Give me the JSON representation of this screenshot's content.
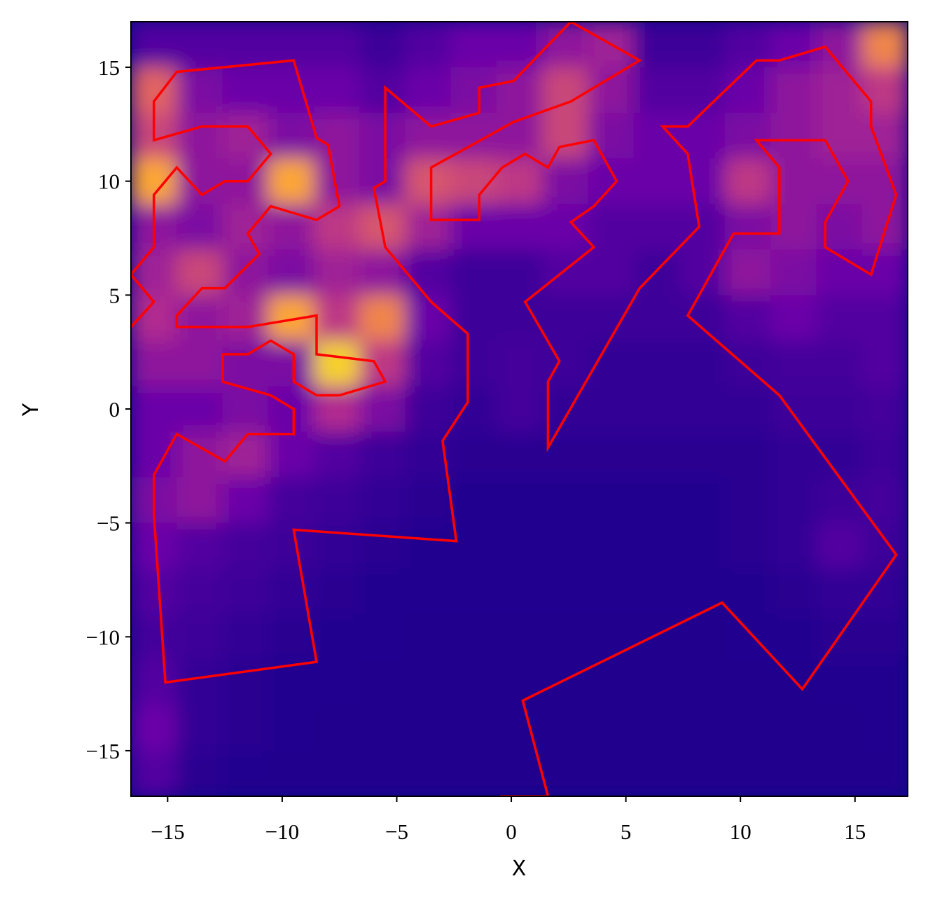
{
  "chart_data": {
    "type": "heatmap",
    "xlabel": "X",
    "ylabel": "Y",
    "xlim": [
      -16.6,
      17.3
    ],
    "ylim": [
      -17,
      17
    ],
    "xticks": [
      {
        "value": -15,
        "label": "−15"
      },
      {
        "value": -10,
        "label": "−10"
      },
      {
        "value": -5,
        "label": "−5"
      },
      0,
      5,
      10,
      15
    ],
    "yticks": [
      {
        "value": -15,
        "label": "−15"
      },
      {
        "value": -10,
        "label": "−10"
      },
      {
        "value": -5,
        "label": "−5"
      },
      0,
      5,
      10,
      15
    ],
    "colormap": [
      "#0d0887",
      "#6a00a8",
      "#b12a90",
      "#e16462",
      "#fca636",
      "#f0f921"
    ],
    "z": [
      [
        0.15,
        0.15,
        0.15,
        0.15,
        0.15,
        0.1,
        0.15,
        0.2,
        0.2,
        0.3,
        0.35,
        0.1,
        0.1,
        0.15,
        0.2,
        0.3,
        0.7
      ],
      [
        0.6,
        0.25,
        0.2,
        0.2,
        0.2,
        0.15,
        0.2,
        0.25,
        0.3,
        0.5,
        0.3,
        0.15,
        0.15,
        0.2,
        0.3,
        0.35,
        0.45
      ],
      [
        0.5,
        0.3,
        0.35,
        0.25,
        0.3,
        0.25,
        0.3,
        0.3,
        0.3,
        0.5,
        0.25,
        0.2,
        0.2,
        0.25,
        0.3,
        0.35,
        0.35
      ],
      [
        0.8,
        0.3,
        0.3,
        0.8,
        0.3,
        0.25,
        0.55,
        0.5,
        0.45,
        0.25,
        0.2,
        0.2,
        0.2,
        0.45,
        0.3,
        0.3,
        0.3
      ],
      [
        0.3,
        0.25,
        0.35,
        0.3,
        0.45,
        0.55,
        0.35,
        0.2,
        0.2,
        0.2,
        0.15,
        0.15,
        0.15,
        0.25,
        0.3,
        0.25,
        0.3
      ],
      [
        0.35,
        0.5,
        0.3,
        0.25,
        0.35,
        0.3,
        0.15,
        0.1,
        0.1,
        0.15,
        0.15,
        0.1,
        0.15,
        0.3,
        0.25,
        0.2,
        0.2
      ],
      [
        0.4,
        0.3,
        0.35,
        0.8,
        0.45,
        0.7,
        0.2,
        0.1,
        0.1,
        0.1,
        0.1,
        0.1,
        0.1,
        0.15,
        0.2,
        0.15,
        0.15
      ],
      [
        0.3,
        0.3,
        0.25,
        0.25,
        0.9,
        0.45,
        0.15,
        0.1,
        0.12,
        0.1,
        0.08,
        0.08,
        0.08,
        0.1,
        0.12,
        0.12,
        0.15
      ],
      [
        0.2,
        0.2,
        0.25,
        0.2,
        0.4,
        0.25,
        0.1,
        0.08,
        0.12,
        0.08,
        0.08,
        0.08,
        0.08,
        0.08,
        0.1,
        0.1,
        0.12
      ],
      [
        0.2,
        0.3,
        0.35,
        0.2,
        0.15,
        0.1,
        0.08,
        0.06,
        0.06,
        0.06,
        0.06,
        0.06,
        0.06,
        0.06,
        0.08,
        0.08,
        0.1
      ],
      [
        0.25,
        0.3,
        0.2,
        0.12,
        0.1,
        0.08,
        0.06,
        0.05,
        0.05,
        0.05,
        0.05,
        0.05,
        0.05,
        0.06,
        0.08,
        0.1,
        0.12
      ],
      [
        0.2,
        0.15,
        0.12,
        0.1,
        0.08,
        0.06,
        0.05,
        0.05,
        0.05,
        0.05,
        0.05,
        0.05,
        0.05,
        0.06,
        0.08,
        0.15,
        0.1
      ],
      [
        0.15,
        0.12,
        0.1,
        0.08,
        0.06,
        0.05,
        0.05,
        0.05,
        0.05,
        0.05,
        0.05,
        0.05,
        0.05,
        0.05,
        0.06,
        0.08,
        0.08
      ],
      [
        0.12,
        0.1,
        0.08,
        0.06,
        0.05,
        0.05,
        0.04,
        0.04,
        0.04,
        0.04,
        0.04,
        0.04,
        0.04,
        0.05,
        0.05,
        0.06,
        0.06
      ],
      [
        0.15,
        0.08,
        0.06,
        0.05,
        0.05,
        0.04,
        0.04,
        0.04,
        0.04,
        0.04,
        0.04,
        0.04,
        0.04,
        0.04,
        0.04,
        0.05,
        0.05
      ],
      [
        0.2,
        0.08,
        0.06,
        0.05,
        0.04,
        0.04,
        0.04,
        0.04,
        0.04,
        0.04,
        0.04,
        0.04,
        0.04,
        0.04,
        0.04,
        0.04,
        0.05
      ],
      [
        0.15,
        0.06,
        0.05,
        0.04,
        0.04,
        0.04,
        0.04,
        0.04,
        0.04,
        0.04,
        0.04,
        0.04,
        0.04,
        0.04,
        0.04,
        0.04,
        0.04
      ]
    ],
    "line": {
      "color": "#ff0000",
      "x": [
        -0.5,
        1.6,
        0.5,
        9.2,
        12.7,
        16.8,
        11.7,
        7.7,
        9.7,
        11.7,
        11.7,
        10.7,
        13.7,
        14.7,
        13.7,
        13.7,
        15.7,
        16.8,
        15.7,
        15.7,
        13.7,
        11.7,
        10.7,
        7.7,
        6.6,
        7.7,
        8.2,
        5.6,
        1.6,
        1.6,
        2.1,
        0.6,
        3.6,
        2.6,
        3.6,
        4.6,
        3.6,
        2.1,
        1.6,
        0.6,
        -0.4,
        -1.4,
        -1.4,
        -3.5,
        -3.5,
        0.1,
        2.6,
        5.6,
        2.6,
        0.1,
        -1.4,
        -1.4,
        -3.5,
        -5.5,
        -5.5,
        -6.0,
        -5.5,
        -3.5,
        -1.9,
        -1.9,
        -3.0,
        -2.4,
        -9.5,
        -8.5,
        -15.1,
        -15.6,
        -15.6,
        -14.6,
        -12.5,
        -11.5,
        -9.5,
        -9.5,
        -10.5,
        -12.6,
        -12.6,
        -11.5,
        -10.5,
        -9.5,
        -9.5,
        -8.5,
        -7.5,
        -5.5,
        -6.0,
        -8.5,
        -8.5,
        -11.5,
        -14.6,
        -14.6,
        -13.5,
        -12.5,
        -11.0,
        -11.5,
        -10.5,
        -8.5,
        -7.5,
        -8.0,
        -8.5,
        -9.5,
        -14.6,
        -15.6,
        -15.6,
        -13.5,
        -11.5,
        -10.5,
        -11.5,
        -12.5,
        -13.5,
        -14.6,
        -15.6,
        -15.6,
        -16.6,
        -15.6,
        -16.6
      ],
      "y": [
        -17.0,
        -17.0,
        -12.8,
        -8.5,
        -12.3,
        -6.4,
        0.6,
        4.1,
        7.7,
        7.7,
        10.6,
        11.8,
        11.8,
        10.0,
        8.2,
        7.1,
        5.9,
        9.4,
        12.4,
        13.5,
        15.9,
        15.3,
        15.3,
        12.4,
        12.4,
        11.2,
        8.0,
        5.3,
        -1.7,
        1.2,
        2.1,
        4.7,
        7.1,
        8.2,
        8.9,
        10.0,
        11.8,
        11.5,
        10.6,
        11.2,
        10.6,
        9.4,
        8.3,
        8.3,
        10.6,
        12.6,
        13.5,
        15.3,
        17.0,
        14.4,
        14.1,
        13.0,
        12.4,
        14.1,
        10.0,
        9.7,
        7.1,
        4.7,
        3.3,
        0.3,
        -1.4,
        -5.8,
        -5.3,
        -11.1,
        -12.0,
        -4.6,
        -2.9,
        -1.1,
        -2.3,
        -1.1,
        -1.1,
        0.0,
        0.6,
        1.2,
        2.4,
        2.4,
        3.0,
        2.4,
        1.2,
        0.6,
        0.6,
        1.2,
        2.1,
        2.4,
        4.1,
        3.6,
        3.6,
        4.1,
        5.3,
        5.3,
        6.8,
        7.7,
        8.9,
        8.3,
        8.9,
        11.6,
        11.9,
        15.3,
        14.8,
        13.5,
        11.8,
        12.4,
        12.4,
        11.2,
        10.0,
        10.0,
        9.4,
        10.6,
        9.4,
        7.1,
        5.9,
        4.7,
        3.6
      ]
    }
  }
}
